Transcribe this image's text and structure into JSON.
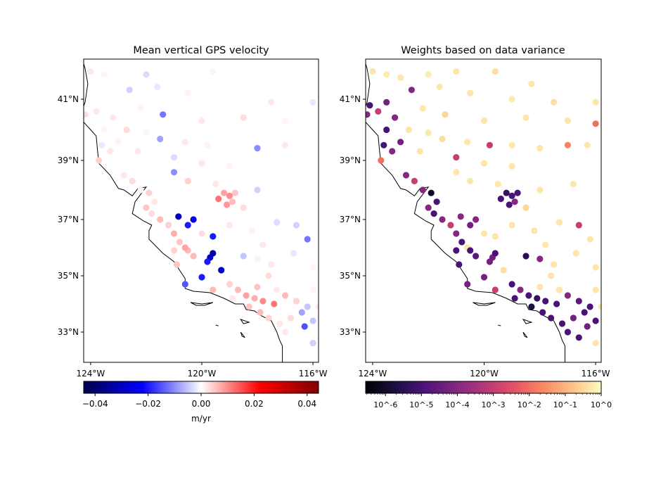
{
  "panels": [
    {
      "title": "Mean vertical GPS velocity",
      "x_ticks": [
        "124°W",
        "120°W",
        "116°W"
      ],
      "y_ticks": [
        "41°N",
        "39°N",
        "37°N",
        "35°N",
        "33°N"
      ],
      "colorbar": {
        "colormap": "seismic",
        "scale": "linear",
        "range": [
          -0.0443,
          0.0443
        ],
        "ticks": [
          -0.04,
          -0.02,
          0.0,
          0.02,
          0.04
        ],
        "tick_labels": [
          "−0.04",
          "−0.02",
          "0.00",
          "0.02",
          "0.04"
        ],
        "label": "m/yr"
      },
      "value_field": "velocity"
    },
    {
      "title": "Weights based on data variance",
      "x_ticks": [
        "124°W",
        "120°W",
        "116°W"
      ],
      "y_ticks": [
        "41°N",
        "39°N",
        "37°N",
        "35°N",
        "33°N"
      ],
      "colorbar": {
        "colormap": "magma",
        "scale": "log",
        "range": [
          2.8e-07,
          1
        ],
        "ticks": [
          1e-06,
          1e-05,
          0.0001,
          0.001,
          0.01,
          0.1,
          1
        ],
        "tick_labels": [
          "10^-6",
          "10^-5",
          "10^-4",
          "10^-3",
          "10^-2",
          "10^-1",
          "10^0"
        ],
        "label": ""
      },
      "value_field": "weight"
    }
  ],
  "chart_data": {
    "type": "scatter",
    "map_extent": {
      "lon": [
        -124.25,
        -115.8
      ],
      "lat": [
        31.9,
        42.3
      ]
    },
    "tick_lons": [
      -124,
      -120,
      -116
    ],
    "tick_lats": [
      41,
      39,
      37,
      35,
      33
    ],
    "station_fields": [
      "lon",
      "lat",
      "velocity",
      "weight"
    ],
    "stations": [
      [
        -124.0,
        41.9,
        0.002,
        0.5
      ],
      [
        -123.5,
        41.8,
        0.001,
        0.6
      ],
      [
        -123.0,
        41.7,
        0.0,
        0.5
      ],
      [
        -122.0,
        41.8,
        -0.003,
        0.6
      ],
      [
        -121.0,
        41.9,
        0.0,
        0.5
      ],
      [
        -119.6,
        41.9,
        0.001,
        0.4
      ],
      [
        -118.3,
        41.5,
        0.0,
        0.5
      ],
      [
        -122.6,
        41.3,
        -0.004,
        0.0001
      ],
      [
        -121.6,
        41.4,
        -0.002,
        0.5
      ],
      [
        -120.5,
        41.2,
        0.001,
        0.5
      ],
      [
        -119.0,
        41.0,
        0.0,
        0.6
      ],
      [
        -117.5,
        40.9,
        0.002,
        0.4
      ],
      [
        -116.0,
        40.9,
        -0.002,
        0.5
      ],
      [
        -115.4,
        40.6,
        0.001,
        0.6
      ],
      [
        -122.2,
        40.7,
        0.001,
        0.5
      ],
      [
        -121.4,
        40.5,
        -0.012,
        0.3
      ],
      [
        -120.0,
        40.3,
        0.002,
        0.5
      ],
      [
        -118.5,
        40.4,
        0.003,
        0.5
      ],
      [
        -117.0,
        40.3,
        0.001,
        0.5
      ],
      [
        -116.0,
        40.2,
        0.0,
        0.01
      ],
      [
        -115.5,
        39.9,
        0.001,
        0.5
      ],
      [
        -123.5,
        40.9,
        0.0,
        5e-05
      ],
      [
        -123.2,
        40.4,
        0.002,
        0.0001
      ],
      [
        -122.7,
        40.0,
        0.003,
        0.5
      ],
      [
        -122.0,
        39.9,
        0.001,
        0.5
      ],
      [
        -121.5,
        39.7,
        -0.008,
        0.4
      ],
      [
        -120.6,
        39.6,
        0.002,
        0.5
      ],
      [
        -119.8,
        39.5,
        0.001,
        0.001
      ],
      [
        -119.0,
        39.5,
        0.0,
        0.5
      ],
      [
        -118.0,
        39.4,
        -0.01,
        0.5
      ],
      [
        -117.0,
        39.5,
        0.002,
        0.02
      ],
      [
        -116.3,
        39.5,
        0.0,
        0.5
      ],
      [
        -115.6,
        39.5,
        0.001,
        0.001
      ],
      [
        -122.3,
        39.3,
        0.002,
        0.5
      ],
      [
        -121.0,
        39.1,
        -0.003,
        0.001
      ],
      [
        -120.0,
        38.9,
        0.002,
        0.5
      ],
      [
        -119.0,
        38.8,
        0.001,
        0.5
      ],
      [
        -121.0,
        38.6,
        -0.01,
        0.5
      ],
      [
        -120.5,
        38.3,
        0.004,
        0.5
      ],
      [
        -119.5,
        38.2,
        0.002,
        0.5
      ],
      [
        -118.0,
        38.0,
        -0.004,
        0.5
      ],
      [
        -116.8,
        38.2,
        0.0,
        0.5
      ],
      [
        -124.1,
        40.8,
        0.0,
        1e-05
      ],
      [
        -124.2,
        40.5,
        0.003,
        0.0001
      ],
      [
        -123.8,
        40.6,
        0.002,
        0.001
      ],
      [
        -123.5,
        40.0,
        0.001,
        1e-05
      ],
      [
        -123.6,
        39.5,
        -0.002,
        1e-05
      ],
      [
        -123.3,
        39.3,
        0.002,
        0.0001
      ],
      [
        -123.0,
        39.6,
        0.001,
        5e-05
      ],
      [
        -123.7,
        39.0,
        0.004,
        0.01
      ],
      [
        -122.8,
        38.5,
        0.002,
        0.0001
      ],
      [
        -122.5,
        38.3,
        0.003,
        0.001
      ],
      [
        -122.2,
        38.0,
        0.001,
        0.0001
      ],
      [
        -121.9,
        37.9,
        0.004,
        1e-06
      ],
      [
        -121.7,
        37.6,
        0.002,
        1e-05
      ],
      [
        -122.0,
        37.4,
        0.005,
        0.0001
      ],
      [
        -121.8,
        37.2,
        0.003,
        1e-05
      ],
      [
        -121.5,
        37.0,
        0.006,
        0.0001
      ],
      [
        -121.2,
        36.8,
        0.004,
        0.001
      ],
      [
        -121.0,
        36.5,
        0.007,
        0.0001
      ],
      [
        -120.8,
        36.2,
        0.005,
        1e-05
      ],
      [
        -120.5,
        35.9,
        0.006,
        1e-05
      ],
      [
        -119.4,
        37.7,
        0.012,
        1e-05
      ],
      [
        -119.2,
        37.9,
        0.008,
        5e-06
      ],
      [
        -119.0,
        37.8,
        0.01,
        1e-05
      ],
      [
        -118.8,
        37.9,
        0.005,
        1e-05
      ],
      [
        -118.9,
        37.6,
        0.006,
        0.0001
      ],
      [
        -119.1,
        37.5,
        0.009,
        1e-05
      ],
      [
        -118.5,
        37.4,
        0.003,
        0.3
      ],
      [
        -120.84,
        37.1,
        -0.03,
        0.0001
      ],
      [
        -120.3,
        37.0,
        -0.025,
        0.0001
      ],
      [
        -120.5,
        36.8,
        -0.02,
        5e-05
      ],
      [
        -119.6,
        36.4,
        -0.02,
        0.5
      ],
      [
        -119.6,
        35.8,
        -0.035,
        1e-05
      ],
      [
        -119.7,
        35.65,
        -0.03,
        5e-05
      ],
      [
        -119.8,
        35.5,
        -0.02,
        5e-05
      ],
      [
        -119.3,
        35.2,
        -0.03,
        0.4
      ],
      [
        -120.0,
        34.95,
        -0.02,
        5e-05
      ],
      [
        -120.6,
        34.7,
        -0.015,
        5e-05
      ],
      [
        -120.6,
        36.0,
        0.008,
        0.5
      ],
      [
        -120.3,
        35.7,
        0.006,
        2e-05
      ],
      [
        -121.0,
        35.9,
        0.004,
        1e-05
      ],
      [
        -120.9,
        35.4,
        0.005,
        1e-05
      ],
      [
        -120.0,
        36.5,
        0.003,
        0.5
      ],
      [
        -119.0,
        36.8,
        0.002,
        0.5
      ],
      [
        -118.2,
        36.6,
        0.001,
        0.5
      ],
      [
        -117.3,
        36.9,
        -0.003,
        0.5
      ],
      [
        -116.6,
        36.8,
        -0.004,
        0.001
      ],
      [
        -116.2,
        36.3,
        -0.012,
        0.5
      ],
      [
        -117.8,
        36.1,
        0.002,
        0.5
      ],
      [
        -118.5,
        35.7,
        -0.005,
        3e-06
      ],
      [
        -118.0,
        35.6,
        0.001,
        0.0001
      ],
      [
        -117.5,
        35.4,
        0.002,
        0.5
      ],
      [
        -116.7,
        35.8,
        -0.002,
        0.5
      ],
      [
        -116.0,
        35.3,
        0.001,
        0.5
      ],
      [
        -119.0,
        34.7,
        0.004,
        1e-05
      ],
      [
        -118.7,
        34.5,
        0.006,
        0.0001
      ],
      [
        -118.4,
        34.3,
        0.008,
        1e-05
      ],
      [
        -118.1,
        34.2,
        0.007,
        5e-06
      ],
      [
        -117.8,
        34.1,
        0.01,
        1e-05
      ],
      [
        -117.4,
        34.0,
        0.012,
        1e-05
      ],
      [
        -117.0,
        34.3,
        0.006,
        0.0001
      ],
      [
        -116.6,
        34.1,
        0.004,
        2e-05
      ],
      [
        -116.2,
        33.9,
        -0.005,
        1e-05
      ],
      [
        -115.8,
        33.9,
        0.002,
        0.5
      ],
      [
        -118.9,
        34.2,
        0.002,
        1e-05
      ],
      [
        -118.3,
        33.9,
        0.005,
        2e-06
      ],
      [
        -117.9,
        33.7,
        0.006,
        1e-05
      ],
      [
        -117.6,
        33.5,
        0.004,
        1e-05
      ],
      [
        -117.2,
        33.3,
        0.002,
        1e-05
      ],
      [
        -116.8,
        33.5,
        0.003,
        5e-05
      ],
      [
        -116.4,
        33.7,
        -0.008,
        1e-05
      ],
      [
        -116.0,
        33.4,
        -0.005,
        1e-05
      ],
      [
        -115.6,
        33.2,
        -0.01,
        1e-06
      ],
      [
        -115.5,
        33.0,
        -0.006,
        3e-07
      ],
      [
        -115.3,
        33.1,
        -0.008,
        3e-07
      ],
      [
        -115.6,
        32.8,
        -0.012,
        1e-05
      ],
      [
        -116.0,
        32.6,
        -0.004,
        0.5
      ],
      [
        -116.6,
        32.8,
        0.0,
        1e-05
      ],
      [
        -117.0,
        33.0,
        0.002,
        1e-05
      ],
      [
        -116.3,
        33.2,
        -0.015,
        5e-05
      ],
      [
        -115.4,
        32.7,
        -0.008,
        0.5
      ],
      [
        -119.6,
        34.5,
        0.006,
        0.001
      ],
      [
        -118.0,
        34.6,
        0.005,
        0.5
      ],
      [
        -117.3,
        34.5,
        0.002,
        0.5
      ],
      [
        -116.0,
        34.5,
        0.001,
        0.5
      ],
      [
        -115.6,
        34.3,
        -0.002,
        0.5
      ],
      [
        -117.6,
        35.0,
        0.003,
        0.5
      ]
    ]
  }
}
